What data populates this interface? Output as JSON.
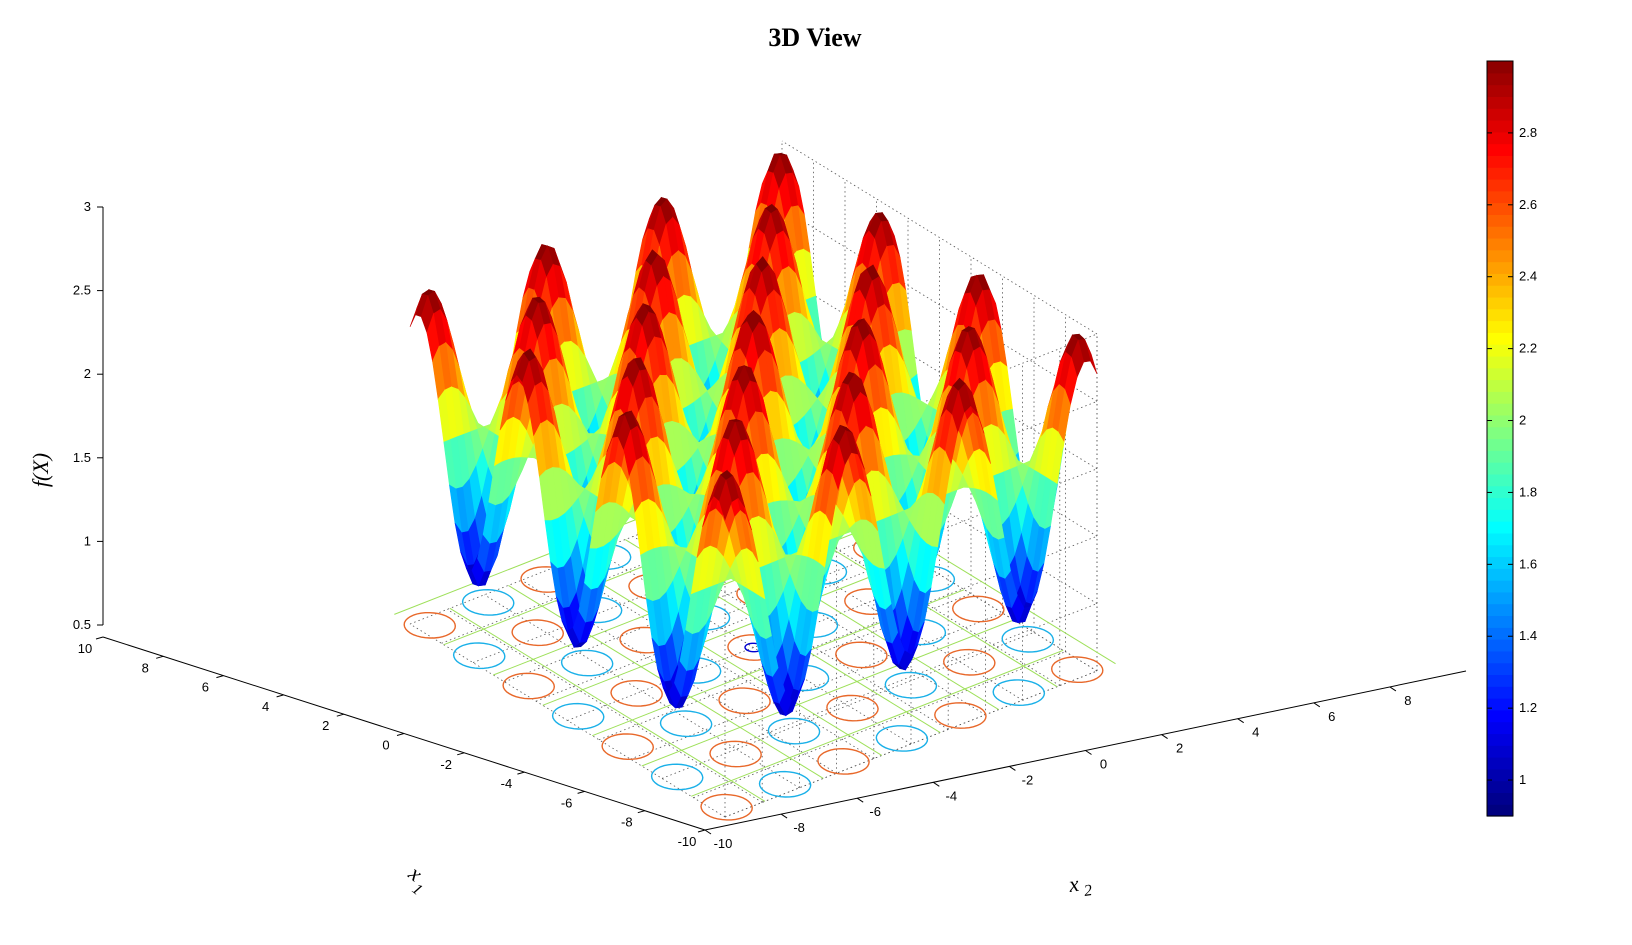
{
  "chart_data": {
    "type": "surface",
    "title": "3D View",
    "xlabel": "x",
    "xlabel_sub": "1",
    "ylabel": "x",
    "ylabel_sub": "2",
    "zlabel": "f(X)",
    "xlim": [
      -10,
      10
    ],
    "ylim": [
      -10,
      10
    ],
    "zlim": [
      0.5,
      3
    ],
    "x_ticks": [
      "-10",
      "-8",
      "-6",
      "-4",
      "-2",
      "0",
      "2",
      "4",
      "6",
      "8",
      "10"
    ],
    "y_ticks": [
      "-10",
      "-8",
      "-6",
      "-4",
      "-2",
      "0",
      "2",
      "4",
      "6",
      "8"
    ],
    "z_ticks": [
      "0.5",
      "1",
      "1.5",
      "2",
      "2.5",
      "3"
    ],
    "colorbar_ticks": [
      "1",
      "1.2",
      "1.4",
      "1.6",
      "1.8",
      "2",
      "2.2",
      "2.4",
      "2.6",
      "2.8"
    ],
    "colorbar_range": [
      0.9,
      3.0
    ],
    "colormap": "jet",
    "function": "f(x1,x2) = 2 + cos(x1) * cos(x2)",
    "contour_levels": [
      1.2,
      1.7,
      2.6
    ],
    "contour_colors": [
      "#0000d0",
      "#1ab0e8",
      "#e8682a"
    ],
    "grid": true
  }
}
